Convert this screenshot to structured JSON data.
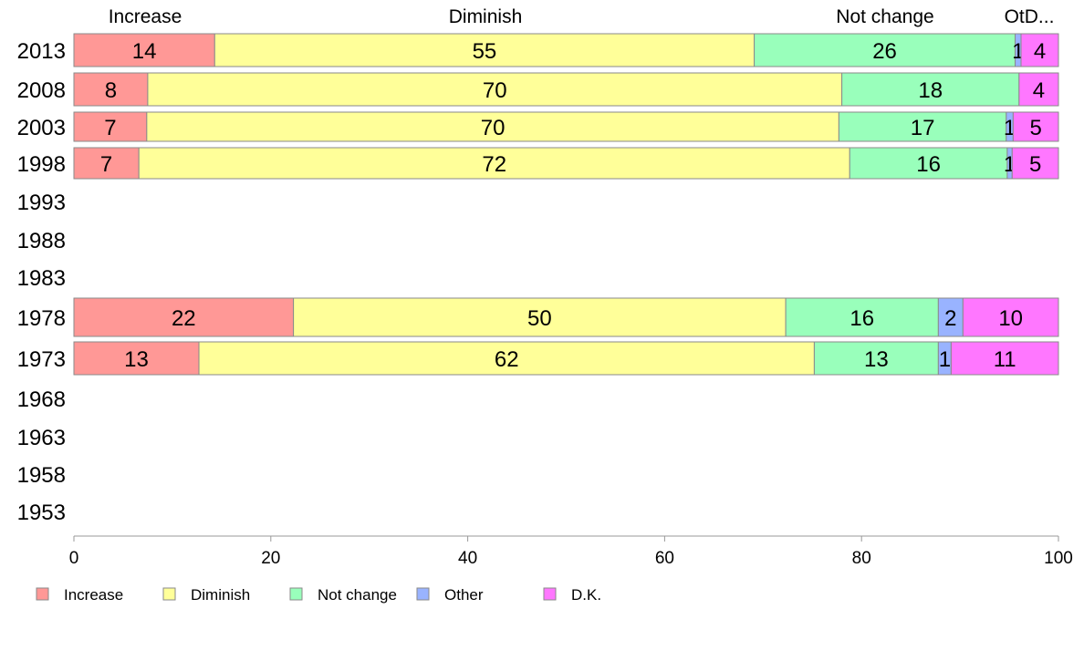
{
  "chart_data": {
    "type": "bar",
    "orientation": "horizontal",
    "stacked": true,
    "years": [
      "2013",
      "2008",
      "2003",
      "1998",
      "1993",
      "1988",
      "1983",
      "1978",
      "1973",
      "1968",
      "1963",
      "1958",
      "1953"
    ],
    "column_headers": [
      "Increase",
      "Diminish",
      "Not change",
      "OtD..."
    ],
    "series": [
      {
        "name": "Increase",
        "color": "#ff9896",
        "values": [
          14.3,
          7.5,
          7.4,
          6.6,
          null,
          null,
          null,
          22.3,
          12.7,
          null,
          null,
          null,
          null
        ],
        "labels": [
          "14",
          "8",
          "7",
          "7",
          "",
          "",
          "",
          "22",
          "13",
          "",
          "",
          "",
          ""
        ]
      },
      {
        "name": "Diminish",
        "color": "#ffff99",
        "values": [
          54.8,
          70.5,
          70.3,
          72.2,
          null,
          null,
          null,
          50.0,
          62.5,
          null,
          null,
          null,
          null
        ],
        "labels": [
          "55",
          "70",
          "70",
          "72",
          "",
          "",
          "",
          "50",
          "62",
          "",
          "",
          "",
          ""
        ]
      },
      {
        "name": "Not change",
        "color": "#99ffbb",
        "values": [
          26.5,
          18.0,
          17.0,
          16.0,
          null,
          null,
          null,
          15.5,
          12.6,
          null,
          null,
          null,
          null
        ],
        "labels": [
          "26",
          "18",
          "17",
          "16",
          "",
          "",
          "",
          "16",
          "13",
          "",
          "",
          "",
          ""
        ]
      },
      {
        "name": "Other",
        "color": "#99b3ff",
        "values": [
          0.6,
          0.0,
          0.7,
          0.5,
          null,
          null,
          null,
          2.5,
          1.3,
          null,
          null,
          null,
          null
        ],
        "labels": [
          "1",
          "",
          "1",
          "1",
          "",
          "",
          "",
          "2",
          "1",
          "",
          "",
          "",
          ""
        ]
      },
      {
        "name": "D.K.",
        "color": "#ff77ff",
        "values": [
          3.8,
          4.0,
          4.6,
          4.7,
          null,
          null,
          null,
          9.7,
          10.9,
          null,
          null,
          null,
          null
        ],
        "labels": [
          "4",
          "4",
          "5",
          "5",
          "",
          "",
          "",
          "10",
          "11",
          "",
          "",
          "",
          ""
        ]
      }
    ],
    "xlim": [
      0,
      100
    ],
    "xticks": [
      0,
      20,
      40,
      60,
      80,
      100
    ],
    "legend_position": "bottom",
    "grid": false
  }
}
